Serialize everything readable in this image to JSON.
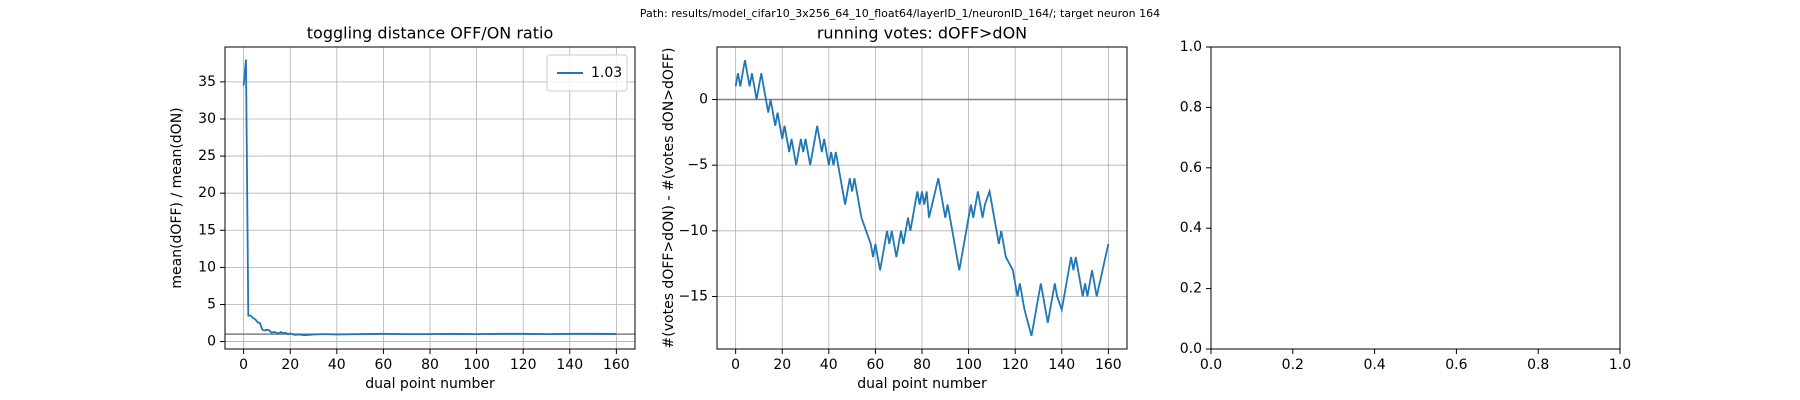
{
  "suptitle": "Path: results/model_cifar10_3x256_64_10_float64/layerID_1/neuronID_164/; target neuron 164",
  "chart_data": [
    {
      "type": "line",
      "title": "toggling distance OFF/ON ratio",
      "xlabel": "dual point number",
      "ylabel": "mean(dOFF) / mean(dON)",
      "x": [
        0,
        1,
        2,
        3,
        4,
        5,
        6,
        7,
        8,
        9,
        10,
        11,
        12,
        13,
        14,
        15,
        16,
        17,
        18,
        19,
        20,
        22,
        24,
        26,
        28,
        30,
        35,
        40,
        50,
        60,
        70,
        80,
        90,
        100,
        110,
        120,
        130,
        140,
        150,
        160
      ],
      "series": [
        {
          "name": "1.03",
          "color": "#1f77b4",
          "values": [
            34.5,
            38,
            3.5,
            3.5,
            3.2,
            3,
            2.6,
            2.5,
            1.6,
            1.5,
            1.6,
            1.5,
            1.2,
            1.3,
            1.2,
            1.1,
            1.3,
            1.1,
            1.2,
            1.0,
            1.1,
            0.9,
            0.95,
            0.85,
            0.9,
            0.95,
            1.0,
            0.95,
            1.0,
            1.05,
            1.0,
            1.0,
            1.05,
            1.0,
            1.05,
            1.05,
            1.0,
            1.05,
            1.05,
            1.03
          ]
        }
      ],
      "hlines": [
        1
      ],
      "hline_color": "#808080",
      "xlim": [
        -8,
        168
      ],
      "ylim": [
        -1,
        39.7
      ],
      "xticks": [
        0,
        20,
        40,
        60,
        80,
        100,
        120,
        140,
        160
      ],
      "yticks": [
        0,
        5,
        10,
        15,
        20,
        25,
        30,
        35
      ],
      "grid": true,
      "legend": "upper right"
    },
    {
      "type": "line",
      "title": "running votes: dOFF>dON",
      "xlabel": "dual point number",
      "ylabel": "#(votes dOFF>dON) - #(votes dON>dOFF)",
      "x": [
        0,
        1,
        2,
        4,
        6,
        7,
        9,
        11,
        14,
        15,
        17,
        18,
        20,
        21,
        23,
        24,
        26,
        28,
        29,
        30,
        32,
        35,
        37,
        38,
        40,
        41,
        42,
        43,
        47,
        49,
        50,
        51,
        54,
        58,
        59,
        60,
        62,
        65,
        66,
        67,
        69,
        71,
        72,
        74,
        75,
        78,
        79,
        80,
        81,
        82,
        83,
        87,
        90,
        91,
        96,
        100,
        101,
        102,
        104,
        105,
        106,
        107,
        109,
        110,
        113,
        114,
        116,
        119,
        121,
        122,
        124,
        127,
        130,
        131,
        133,
        134,
        137,
        138,
        140,
        144,
        145,
        146,
        149,
        150,
        151,
        153,
        155,
        160
      ],
      "series": [
        {
          "color": "#1f77b4",
          "values": [
            1,
            2,
            1,
            3,
            1,
            2,
            0,
            2,
            -1,
            0,
            -2,
            -1,
            -3,
            -2,
            -4,
            -3,
            -5,
            -3,
            -4,
            -3,
            -5,
            -2,
            -4,
            -3,
            -5,
            -4,
            -5,
            -4,
            -8,
            -6,
            -7,
            -6,
            -9,
            -11,
            -12,
            -11,
            -13,
            -10,
            -11,
            -10,
            -12,
            -10,
            -11,
            -9,
            -10,
            -7,
            -8,
            -7,
            -8,
            -7,
            -9,
            -6,
            -9,
            -8,
            -13,
            -9,
            -8,
            -9,
            -7,
            -8,
            -9,
            -8,
            -7,
            -8,
            -11,
            -10,
            -12,
            -13,
            -15,
            -14,
            -16,
            -18,
            -15,
            -14,
            -16,
            -17,
            -14,
            -15,
            -16,
            -12,
            -13,
            -12,
            -15,
            -14,
            -15,
            -13,
            -15,
            -11
          ]
        }
      ],
      "hlines": [
        0
      ],
      "hline_color": "#808080",
      "xlim": [
        -8,
        168
      ],
      "ylim": [
        -19,
        4
      ],
      "xticks": [
        0,
        20,
        40,
        60,
        80,
        100,
        120,
        140,
        160
      ],
      "yticks": [
        {
          "value": -15,
          "label": "−15"
        },
        {
          "value": -10,
          "label": "−10"
        },
        {
          "value": -5,
          "label": "−5"
        },
        0
      ],
      "grid": true
    },
    {
      "type": "blank",
      "xlim": [
        0,
        1
      ],
      "ylim": [
        0,
        1
      ],
      "xticks": [
        {
          "value": 0,
          "label": "0.0"
        },
        0.2,
        0.4,
        0.6,
        0.8,
        {
          "value": 1,
          "label": "1.0"
        }
      ],
      "yticks": [
        {
          "value": 0,
          "label": "0.0"
        },
        0.2,
        0.4,
        0.6,
        0.8,
        {
          "value": 1,
          "label": "1.0"
        }
      ]
    }
  ]
}
